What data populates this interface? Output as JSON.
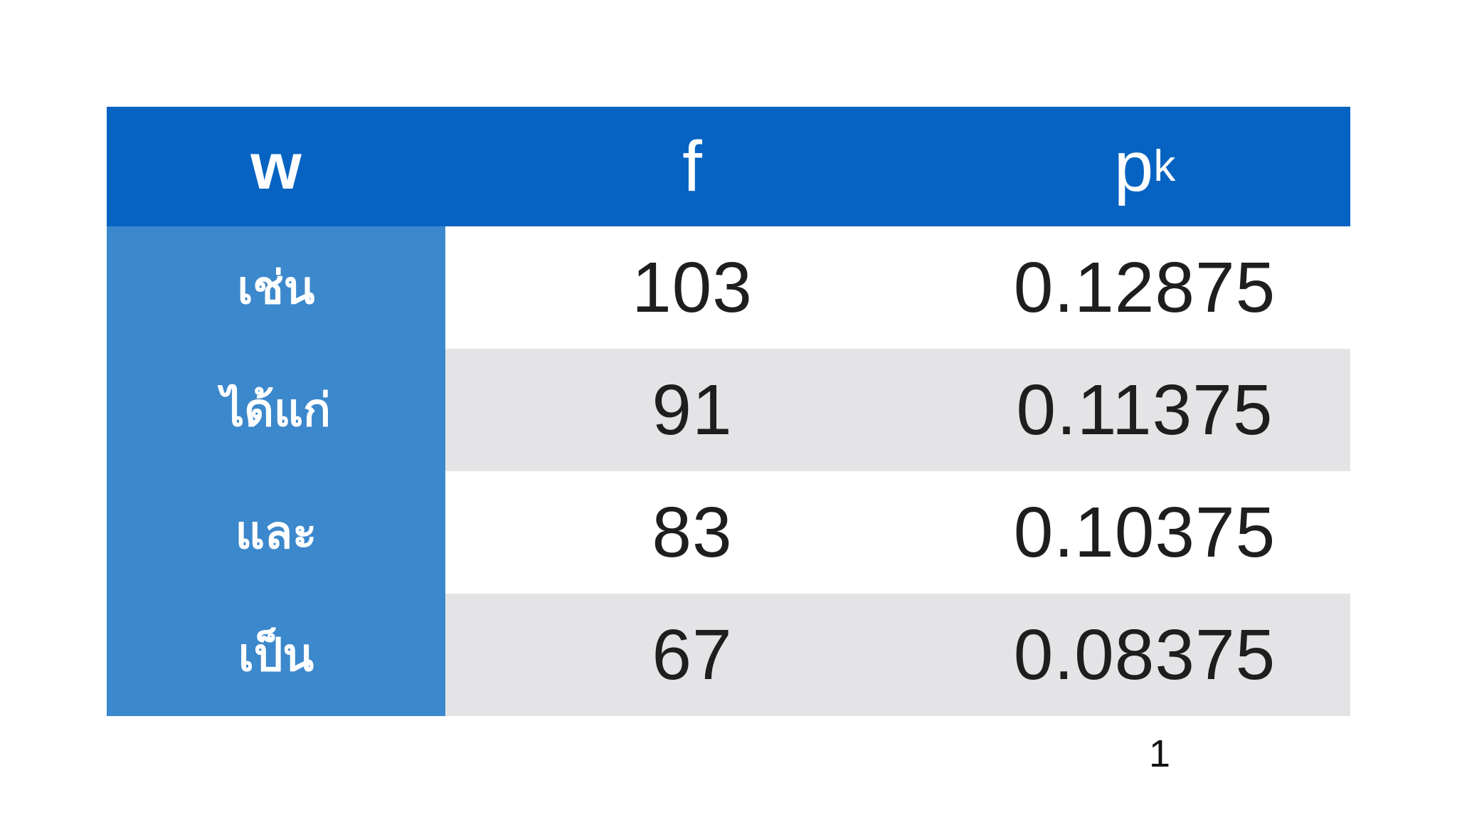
{
  "page": {
    "background": "#ffffff",
    "page_number": "1"
  },
  "table": {
    "header": {
      "w": "w",
      "f": "f",
      "pk_base": "p",
      "pk_sub": "k"
    },
    "rows": [
      {
        "w": "เช่น",
        "f": "103",
        "pk": "0.12875"
      },
      {
        "w": "ได้แก่",
        "f": "91",
        "pk": "0.11375"
      },
      {
        "w": "และ",
        "f": "83",
        "pk": "0.10375"
      },
      {
        "w": "เป็น",
        "f": "67",
        "pk": "0.08375"
      }
    ],
    "colors": {
      "header_bg": "#0663c2",
      "label_column_bg": "#3c88cc",
      "stripe_bg": "#e4e4e6",
      "plain_row_bg": "#ffffff",
      "header_text": "#ffffff",
      "label_text": "#ffffff",
      "value_text": "#1e1e1e"
    }
  },
  "chart_data": {
    "type": "table",
    "title": "",
    "columns": [
      "w",
      "f",
      "pk"
    ],
    "rows": [
      [
        "เช่น",
        103,
        0.12875
      ],
      [
        "ได้แก่",
        91,
        0.11375
      ],
      [
        "และ",
        83,
        0.10375
      ],
      [
        "เป็น",
        67,
        0.08375
      ]
    ],
    "notes_layout": "header row dark blue; first column light blue; value rows alternate white and light gray"
  }
}
